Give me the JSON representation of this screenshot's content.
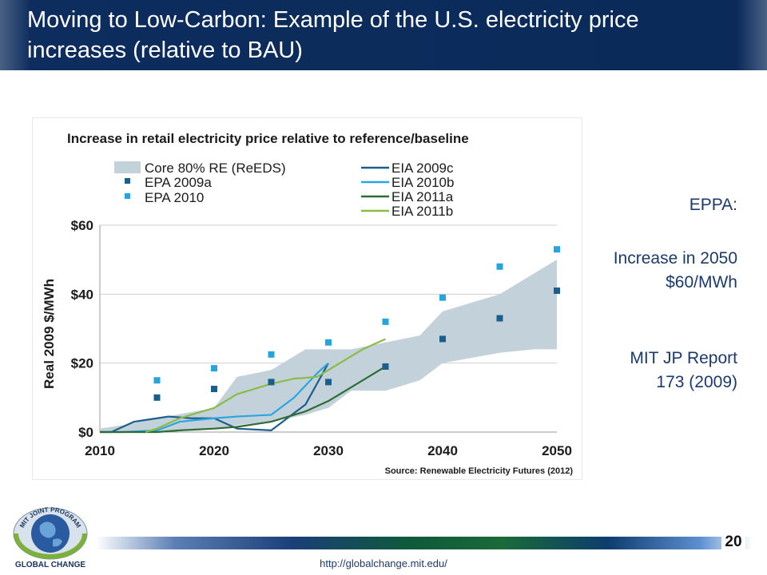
{
  "slide": {
    "title_line1": "Moving to Low-Carbon: Example of the U.S. electricity price",
    "title_line2": "increases (relative to BAU)",
    "page_number": "20",
    "url": "http://globalchange.mit.edu/"
  },
  "logo": {
    "arc_text": "MIT JOINT PROGRAM",
    "label": "GLOBAL CHANGE"
  },
  "notes": {
    "eppa": "EPPA:",
    "increase_label": "Increase in 2050",
    "increase_value": "$60/MWh",
    "report_line1": "MIT JP Report",
    "report_line2": "173 (2009)"
  },
  "chart_data": {
    "type": "line",
    "title": "Increase in retail electricity price relative to reference/baseline",
    "ylabel": "Real 2009 $/MWh",
    "source": "Source: Renewable Electricity Futures (2012)",
    "xlim": [
      2010,
      2050
    ],
    "ylim": [
      0,
      60
    ],
    "x_ticks": [
      2010,
      2020,
      2030,
      2040,
      2050
    ],
    "y_ticks": [
      0,
      20,
      40,
      60
    ],
    "y_tick_labels": [
      "$0",
      "$20",
      "$40",
      "$60"
    ],
    "grid": "horizontal",
    "colors": {
      "band": "#c3d2da",
      "epa2009a": "#1a5f8c",
      "epa2010": "#25a4de",
      "eia2009c": "#1d5e8e",
      "eia2010b": "#2ba5e0",
      "eia2011a": "#2f6b35",
      "eia2011b": "#8cbb45",
      "title_text": "#1b1b1b"
    },
    "band": {
      "name": "Core 80% RE (ReEDS)",
      "x": [
        2010,
        2012,
        2015,
        2020,
        2022,
        2025,
        2028,
        2030,
        2032,
        2035,
        2038,
        2040,
        2045,
        2048,
        2050
      ],
      "upper": [
        1,
        2,
        4,
        7,
        16,
        18,
        24,
        24,
        24,
        26,
        28,
        35,
        40,
        46,
        50
      ],
      "lower": [
        0,
        0,
        0,
        1,
        2,
        3,
        5,
        7,
        12,
        12,
        15,
        20,
        23,
        24,
        24
      ]
    },
    "scatter_series": [
      {
        "name": "EPA 2009a",
        "x": [
          2015,
          2020,
          2025,
          2030,
          2035,
          2040,
          2045,
          2050
        ],
        "y": [
          10,
          12.5,
          14.5,
          14.5,
          19,
          27,
          33,
          41
        ]
      },
      {
        "name": "EPA 2010",
        "x": [
          2015,
          2020,
          2025,
          2030,
          2035,
          2040,
          2045,
          2050
        ],
        "y": [
          15,
          18.5,
          22.5,
          26,
          32,
          39,
          48,
          53
        ]
      }
    ],
    "line_series": [
      {
        "name": "EIA 2009c",
        "x": [
          2010,
          2011,
          2013,
          2014,
          2015,
          2016,
          2018,
          2020,
          2022,
          2025,
          2028,
          2030
        ],
        "y": [
          0,
          0,
          3,
          3.5,
          4,
          4.5,
          4,
          4,
          1,
          0.5,
          8,
          20
        ]
      },
      {
        "name": "EIA 2010b",
        "x": [
          2010,
          2012,
          2015,
          2017,
          2020,
          2022,
          2025,
          2027,
          2029,
          2030
        ],
        "y": [
          0,
          0,
          0.5,
          3,
          4,
          4.5,
          5,
          10,
          17,
          20
        ]
      },
      {
        "name": "EIA 2011a",
        "x": [
          2010,
          2015,
          2017,
          2020,
          2022,
          2025,
          2028,
          2030,
          2032,
          2035
        ],
        "y": [
          0,
          0,
          0.5,
          1,
          1.5,
          3,
          6,
          9,
          13,
          19
        ]
      },
      {
        "name": "EIA 2011b",
        "x": [
          2014,
          2015,
          2017,
          2020,
          2022,
          2025,
          2027,
          2029,
          2031,
          2033,
          2035
        ],
        "y": [
          0,
          1,
          4,
          7,
          11,
          14,
          15.5,
          16,
          20,
          24,
          27
        ]
      }
    ]
  }
}
